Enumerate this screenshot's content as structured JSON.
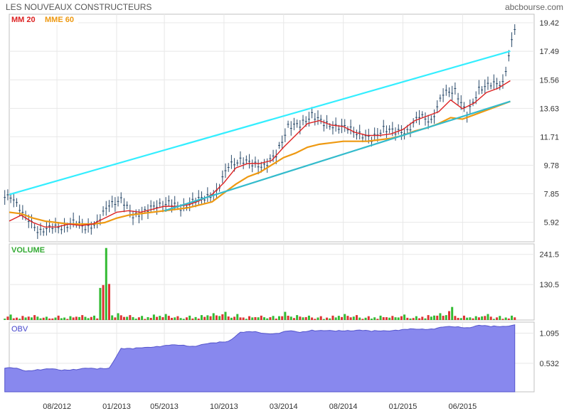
{
  "header": {
    "title": "LES NOUVEAUX CONSTRUCTEURS",
    "source": "abcbourse.com"
  },
  "colors": {
    "candle": "#2a4a6a",
    "mm20": "#dd2222",
    "mme60": "#ee9911",
    "upper_trend": "#33eeff",
    "lower_trend": "#33bbcc",
    "vol_up": "#33bb33",
    "vol_down": "#dd3333",
    "obv_fill": "#8888ee",
    "obv_line": "#5555cc",
    "legend_mm20": "#dd2222",
    "legend_mme60": "#ee9911",
    "legend_volume": "#33aa33",
    "legend_obv": "#4444cc",
    "grid": "#e8e8e8",
    "frame": "#c0c0c0"
  },
  "chart_data": [
    {
      "type": "line",
      "panel": "price",
      "legend": [
        "MM 20",
        "MME 60"
      ],
      "x_ticks": [
        "08/2012",
        "01/2013",
        "05/2013",
        "10/2013",
        "03/2014",
        "08/2014",
        "01/2015",
        "06/2015"
      ],
      "y_ticks": [
        "19.42",
        "17.49",
        "15.56",
        "13.63",
        "11.71",
        "9.78",
        "7.85",
        "5.92"
      ],
      "ylim": [
        4.6,
        20.0
      ],
      "x": [
        "2012-04",
        "2012-05",
        "2012-06",
        "2012-07",
        "2012-08",
        "2012-09",
        "2012-10",
        "2012-11",
        "2012-12",
        "2013-01",
        "2013-02",
        "2013-03",
        "2013-04",
        "2013-05",
        "2013-06",
        "2013-07",
        "2013-08",
        "2013-09",
        "2013-10",
        "2013-11",
        "2013-12",
        "2014-01",
        "2014-02",
        "2014-03",
        "2014-04",
        "2014-05",
        "2014-06",
        "2014-07",
        "2014-08",
        "2014-09",
        "2014-10",
        "2014-11",
        "2014-12",
        "2015-01",
        "2015-02",
        "2015-03",
        "2015-04",
        "2015-05",
        "2015-06",
        "2015-07",
        "2015-08",
        "2015-09",
        "2015-10"
      ],
      "series": [
        {
          "name": "close",
          "values": [
            7.6,
            6.2,
            5.4,
            5.5,
            5.6,
            5.9,
            5.6,
            5.8,
            7.2,
            7.4,
            6.4,
            6.6,
            7.1,
            7.2,
            6.9,
            7.3,
            7.6,
            7.9,
            9.8,
            10.1,
            9.9,
            9.7,
            10.5,
            12.4,
            12.5,
            13.2,
            12.6,
            12.4,
            12.3,
            11.9,
            11.5,
            12.3,
            12.0,
            12.1,
            13.1,
            12.8,
            14.6,
            14.9,
            13.1,
            15.0,
            15.2,
            15.4,
            19.0
          ]
        },
        {
          "name": "MM 20",
          "values": [
            6.0,
            6.4,
            5.9,
            5.6,
            5.6,
            5.8,
            5.7,
            5.8,
            6.2,
            6.6,
            6.7,
            6.6,
            6.8,
            7.0,
            7.0,
            7.1,
            7.4,
            7.8,
            8.6,
            9.6,
            9.9,
            9.9,
            10.1,
            11.0,
            11.8,
            12.6,
            12.8,
            12.5,
            12.4,
            12.0,
            11.8,
            11.8,
            11.9,
            12.2,
            12.8,
            13.1,
            13.4,
            14.2,
            13.6,
            14.0,
            14.7,
            15.0,
            15.5
          ]
        },
        {
          "name": "MME 60",
          "values": [
            6.6,
            6.5,
            6.2,
            6.0,
            5.9,
            5.8,
            5.8,
            5.8,
            5.9,
            6.2,
            6.4,
            6.5,
            6.6,
            6.7,
            6.8,
            6.9,
            7.1,
            7.3,
            7.9,
            8.5,
            9.0,
            9.3,
            9.8,
            10.3,
            10.6,
            11.0,
            11.2,
            11.3,
            11.4,
            11.4,
            11.4,
            11.5,
            11.6,
            11.8,
            12.1,
            12.3,
            12.6,
            13.0,
            12.9,
            13.2,
            13.5,
            13.8,
            14.1
          ]
        }
      ],
      "trendlines": [
        {
          "name": "upper",
          "from": [
            "2012-04",
            7.8
          ],
          "to": [
            "2015-10",
            17.5
          ]
        },
        {
          "name": "lower",
          "from": [
            "2013-05",
            6.7
          ],
          "to": [
            "2015-10",
            14.1
          ]
        }
      ]
    },
    {
      "type": "bar",
      "panel": "volume",
      "title": "VOLUME",
      "y_ticks": [
        "241.5",
        "130.5"
      ],
      "ylim": [
        0,
        280
      ],
      "x": [
        "2012-04",
        "2012-05",
        "2012-06",
        "2012-07",
        "2012-08",
        "2012-09",
        "2012-10",
        "2012-11",
        "2012-12",
        "2013-01",
        "2013-02",
        "2013-03",
        "2013-04",
        "2013-05",
        "2013-06",
        "2013-07",
        "2013-08",
        "2013-09",
        "2013-10",
        "2013-11",
        "2013-12",
        "2014-01",
        "2014-02",
        "2014-03",
        "2014-04",
        "2014-05",
        "2014-06",
        "2014-07",
        "2014-08",
        "2014-09",
        "2014-10",
        "2014-11",
        "2014-12",
        "2015-01",
        "2015-02",
        "2015-03",
        "2015-04",
        "2015-05",
        "2015-06",
        "2015-07",
        "2015-08",
        "2015-09",
        "2015-10"
      ],
      "values": [
        20,
        15,
        18,
        12,
        16,
        14,
        18,
        16,
        265,
        25,
        18,
        15,
        20,
        22,
        14,
        16,
        18,
        25,
        30,
        22,
        14,
        16,
        15,
        30,
        18,
        16,
        14,
        16,
        22,
        18,
        14,
        16,
        15,
        20,
        14,
        18,
        25,
        48,
        16,
        14,
        22,
        15,
        16
      ],
      "up": [
        true,
        false,
        false,
        true,
        false,
        true,
        false,
        true,
        true,
        true,
        false,
        true,
        true,
        true,
        false,
        true,
        true,
        true,
        true,
        true,
        false,
        false,
        true,
        true,
        true,
        true,
        false,
        false,
        true,
        false,
        false,
        true,
        false,
        true,
        true,
        false,
        true,
        true,
        false,
        true,
        true,
        true,
        true
      ]
    },
    {
      "type": "area",
      "panel": "obv",
      "title": "OBV",
      "y_ticks": [
        "1.095",
        "0.532"
      ],
      "ylim": [
        0,
        1.3
      ],
      "x": [
        "2012-04",
        "2012-05",
        "2012-06",
        "2012-07",
        "2012-08",
        "2012-09",
        "2012-10",
        "2012-11",
        "2012-12",
        "2013-01",
        "2013-02",
        "2013-03",
        "2013-04",
        "2013-05",
        "2013-06",
        "2013-07",
        "2013-08",
        "2013-09",
        "2013-10",
        "2013-11",
        "2013-12",
        "2014-01",
        "2014-02",
        "2014-03",
        "2014-04",
        "2014-05",
        "2014-06",
        "2014-07",
        "2014-08",
        "2014-09",
        "2014-10",
        "2014-11",
        "2014-12",
        "2015-01",
        "2015-02",
        "2015-03",
        "2015-04",
        "2015-05",
        "2015-06",
        "2015-07",
        "2015-08",
        "2015-09",
        "2015-10"
      ],
      "values": [
        0.44,
        0.4,
        0.41,
        0.42,
        0.41,
        0.42,
        0.43,
        0.43,
        0.45,
        0.8,
        0.8,
        0.84,
        0.84,
        0.86,
        0.88,
        0.85,
        0.88,
        0.92,
        0.95,
        1.1,
        1.12,
        1.1,
        1.08,
        1.13,
        1.12,
        1.15,
        1.13,
        1.14,
        1.15,
        1.14,
        1.13,
        1.15,
        1.14,
        1.16,
        1.18,
        1.17,
        1.2,
        1.22,
        1.2,
        1.23,
        1.22,
        1.23,
        1.24
      ]
    }
  ]
}
